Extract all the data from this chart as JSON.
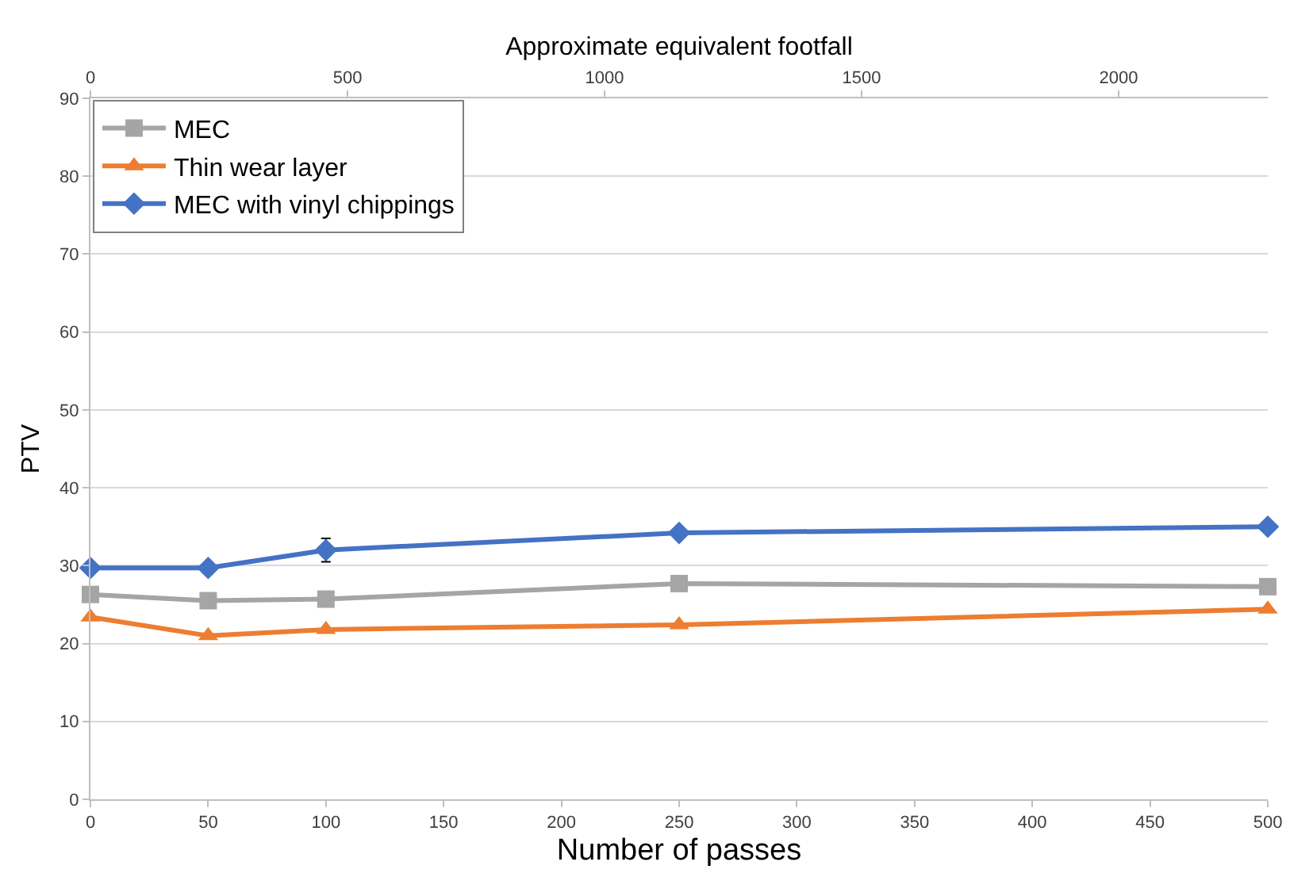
{
  "chart_data": {
    "type": "line",
    "xlabel": "Number of passes",
    "ylabel": "PTV",
    "x2label": "Approximate equivalent footfall",
    "x": [
      0,
      50,
      100,
      250,
      500
    ],
    "series": [
      {
        "name": "MEC",
        "color": "#a5a5a5",
        "marker": "square",
        "values": [
          26.3,
          25.5,
          25.7,
          27.7,
          27.3
        ]
      },
      {
        "name": "Thin wear layer",
        "color": "#ed7d31",
        "marker": "triangle",
        "values": [
          23.4,
          21.0,
          21.8,
          22.4,
          24.4
        ]
      },
      {
        "name": "MEC with vinyl chippings",
        "color": "#4472c4",
        "marker": "diamond",
        "values": [
          29.7,
          29.7,
          32.0,
          34.2,
          35.0
        ],
        "errors": [
          null,
          null,
          1.5,
          null,
          null
        ]
      }
    ],
    "xlim": [
      0,
      500
    ],
    "xticks": [
      0,
      50,
      100,
      150,
      200,
      250,
      300,
      350,
      400,
      450,
      500
    ],
    "x2lim": [
      0,
      2290
    ],
    "x2ticks": [
      0,
      500,
      1000,
      1500,
      2000
    ],
    "ylim": [
      0,
      90
    ],
    "yticks": [
      0,
      10,
      20,
      30,
      40,
      50,
      60,
      70,
      80,
      90
    ],
    "grid": "y",
    "legend": "top left",
    "line_style": "solid"
  }
}
